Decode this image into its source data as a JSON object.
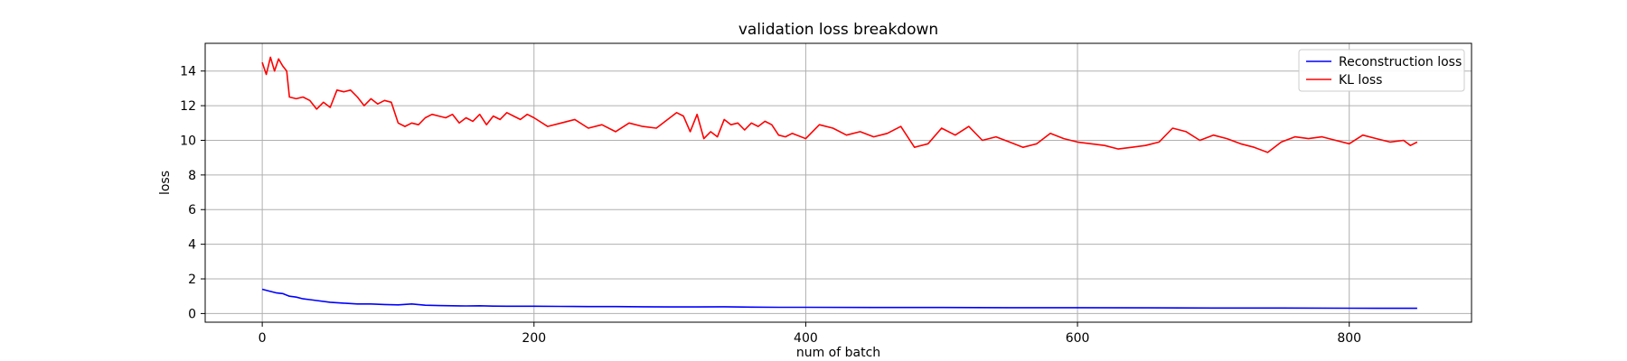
{
  "chart_data": {
    "type": "line",
    "title": "validation loss breakdown",
    "xlabel": "num of batch",
    "ylabel": "loss",
    "xlim": [
      -42,
      890
    ],
    "ylim": [
      -0.5,
      15.6
    ],
    "xticks": [
      0,
      200,
      400,
      600,
      800
    ],
    "yticks": [
      0,
      2,
      4,
      6,
      8,
      10,
      12,
      14
    ],
    "grid": true,
    "legend_position": "top-right",
    "series": [
      {
        "name": "Reconstruction loss",
        "color": "#0000ff",
        "x": [
          0,
          5,
          10,
          15,
          20,
          25,
          30,
          35,
          40,
          50,
          60,
          70,
          80,
          90,
          100,
          110,
          120,
          130,
          140,
          150,
          160,
          170,
          180,
          190,
          200,
          220,
          240,
          260,
          280,
          300,
          320,
          340,
          360,
          380,
          400,
          450,
          500,
          550,
          600,
          650,
          700,
          750,
          800,
          820,
          850
        ],
        "values": [
          1.4,
          1.3,
          1.2,
          1.15,
          1.0,
          0.95,
          0.85,
          0.8,
          0.75,
          0.65,
          0.6,
          0.55,
          0.55,
          0.52,
          0.5,
          0.55,
          0.48,
          0.46,
          0.45,
          0.44,
          0.45,
          0.43,
          0.42,
          0.42,
          0.42,
          0.41,
          0.4,
          0.4,
          0.39,
          0.38,
          0.38,
          0.39,
          0.37,
          0.36,
          0.36,
          0.35,
          0.35,
          0.34,
          0.34,
          0.33,
          0.32,
          0.32,
          0.31,
          0.3,
          0.3
        ]
      },
      {
        "name": "KL loss",
        "color": "#ff0000",
        "x": [
          0,
          3,
          6,
          9,
          12,
          15,
          18,
          20,
          25,
          30,
          35,
          40,
          45,
          50,
          55,
          60,
          65,
          70,
          75,
          80,
          85,
          90,
          95,
          100,
          105,
          110,
          115,
          120,
          125,
          130,
          135,
          140,
          145,
          150,
          155,
          160,
          165,
          170,
          175,
          180,
          185,
          190,
          195,
          200,
          210,
          220,
          230,
          240,
          250,
          260,
          270,
          280,
          290,
          300,
          305,
          310,
          315,
          320,
          325,
          330,
          335,
          340,
          345,
          350,
          355,
          360,
          365,
          370,
          375,
          380,
          385,
          390,
          400,
          410,
          420,
          430,
          440,
          450,
          460,
          470,
          480,
          490,
          500,
          510,
          520,
          530,
          540,
          550,
          560,
          570,
          580,
          590,
          600,
          610,
          620,
          630,
          640,
          650,
          660,
          670,
          680,
          690,
          700,
          710,
          720,
          730,
          740,
          750,
          760,
          770,
          780,
          790,
          800,
          810,
          820,
          830,
          840,
          845,
          850
        ],
        "values": [
          14.5,
          13.8,
          14.8,
          14.0,
          14.7,
          14.3,
          14.0,
          12.5,
          12.4,
          12.5,
          12.3,
          11.8,
          12.2,
          11.9,
          12.9,
          12.8,
          12.9,
          12.5,
          12.0,
          12.4,
          12.1,
          12.3,
          12.2,
          11.0,
          10.8,
          11.0,
          10.9,
          11.3,
          11.5,
          11.4,
          11.3,
          11.5,
          11.0,
          11.3,
          11.1,
          11.5,
          10.9,
          11.4,
          11.2,
          11.6,
          11.4,
          11.2,
          11.5,
          11.3,
          10.8,
          11.0,
          11.2,
          10.7,
          10.9,
          10.5,
          11.0,
          10.8,
          10.7,
          11.3,
          11.6,
          11.4,
          10.5,
          11.5,
          10.1,
          10.5,
          10.2,
          11.2,
          10.9,
          11.0,
          10.6,
          11.0,
          10.8,
          11.1,
          10.9,
          10.3,
          10.2,
          10.4,
          10.1,
          10.9,
          10.7,
          10.3,
          10.5,
          10.2,
          10.4,
          10.8,
          9.6,
          9.8,
          10.7,
          10.3,
          10.8,
          10.0,
          10.2,
          9.9,
          9.6,
          9.8,
          10.4,
          10.1,
          9.9,
          9.8,
          9.7,
          9.5,
          9.6,
          9.7,
          9.9,
          10.7,
          10.5,
          10.0,
          10.3,
          10.1,
          9.8,
          9.6,
          9.3,
          9.9,
          10.2,
          10.1,
          10.2,
          10.0,
          9.8,
          10.3,
          10.1,
          9.9,
          10.0,
          9.7,
          9.9
        ]
      }
    ]
  }
}
